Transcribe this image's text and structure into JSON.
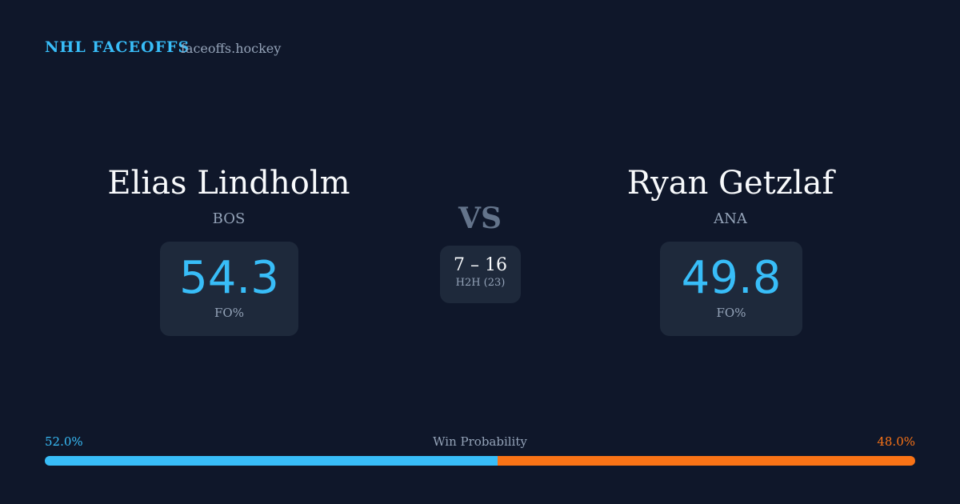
{
  "header": {
    "brand": "NHL FACEOFFS",
    "site": "faceoffs.hockey"
  },
  "players": [
    {
      "name": "Elias Lindholm",
      "team": "BOS",
      "fo": 54.3,
      "fo_label": "FO%"
    },
    {
      "name": "Ryan Getzlaf",
      "team": "ANA",
      "fo": 49.8,
      "fo_label": "FO%"
    }
  ],
  "versus": "VS",
  "h2h": {
    "score": "7 – 16",
    "label": "H2H (23)"
  },
  "win_probability": {
    "title": "Win Probability",
    "values": [
      52.0,
      48.0
    ],
    "value_labels": [
      "52.0%",
      "48.0%"
    ],
    "colors": [
      "#38bdf8",
      "#f97316"
    ]
  }
}
